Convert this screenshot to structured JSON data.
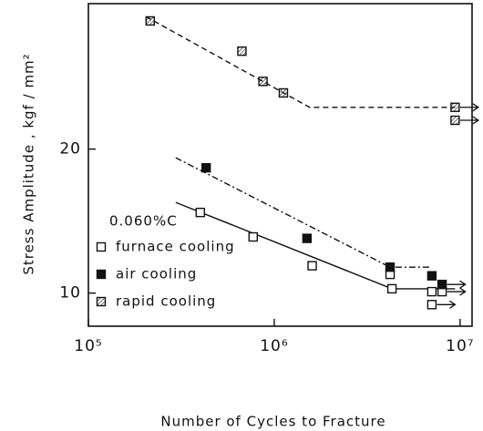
{
  "chart_data": {
    "type": "scatter",
    "xlabel": "Number of  Cycles to Fracture",
    "ylabel": "Stress  Amplitude , kgf / mm²",
    "legend_title": "0.060%C",
    "xscale": "log",
    "xlim": [
      100000,
      11600000
    ],
    "xticks": [
      {
        "value": 100000,
        "label": "10⁵"
      },
      {
        "value": 1000000,
        "label": "10⁶"
      },
      {
        "value": 10000000,
        "label": "10⁷"
      }
    ],
    "ylim": [
      7.7,
      30.1
    ],
    "yticks": [
      10,
      20
    ],
    "series": [
      {
        "name": "furnace cooling",
        "marker": "open",
        "color": "#111111",
        "x": [
          400000,
          770000,
          1600000,
          4200000,
          4300000,
          7050000,
          7050000,
          8000000
        ],
        "values": [
          15.6,
          13.9,
          11.9,
          11.3,
          10.3,
          10.1,
          9.2,
          10.1
        ],
        "runout": [
          false,
          false,
          false,
          false,
          false,
          false,
          true,
          true
        ]
      },
      {
        "name": "air cooling",
        "marker": "filled",
        "color": "#111111",
        "x": [
          430000,
          1500000,
          4200000,
          7050000,
          8000000
        ],
        "values": [
          18.7,
          13.8,
          11.8,
          11.2,
          10.6
        ],
        "runout": [
          false,
          false,
          false,
          false,
          true
        ]
      },
      {
        "name": "rapid cooling",
        "marker": "hatched",
        "color": "#111111",
        "x": [
          215000,
          670000,
          870000,
          1120000,
          9400000,
          9400000
        ],
        "values": [
          28.9,
          26.8,
          24.7,
          23.9,
          22.9,
          22.0
        ],
        "runout": [
          false,
          false,
          false,
          false,
          true,
          true
        ]
      }
    ],
    "lines": [
      {
        "style": "solid",
        "x": [
          295000,
          4300000,
          9400000
        ],
        "values": [
          16.3,
          10.3,
          10.3
        ]
      },
      {
        "style": "dashdot",
        "x": [
          295000,
          4200000,
          7050000
        ],
        "values": [
          19.4,
          11.8,
          11.8
        ]
      },
      {
        "style": "dashed",
        "x": [
          204000,
          1550000,
          9400000
        ],
        "values": [
          29.2,
          22.9,
          22.9
        ]
      }
    ]
  }
}
